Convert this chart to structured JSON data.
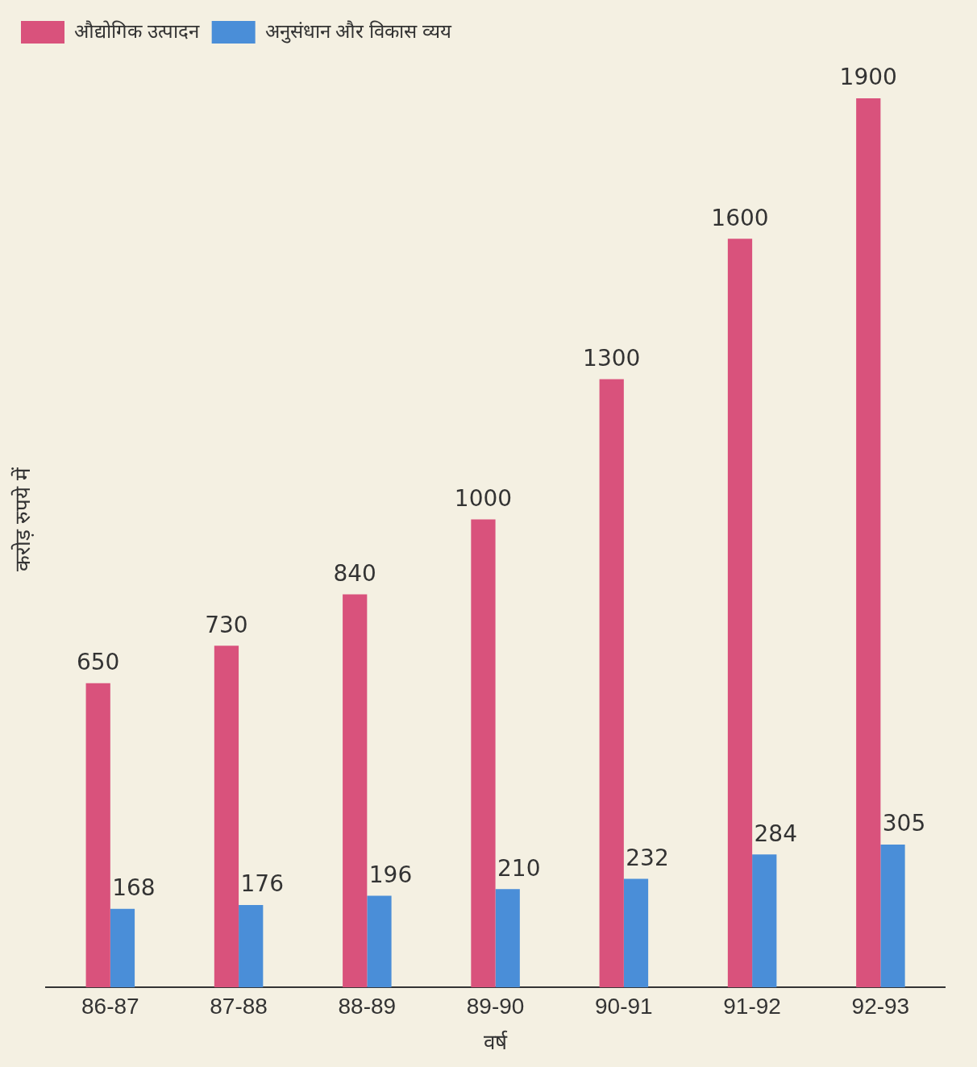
{
  "chart_data": {
    "type": "bar",
    "xlabel": "वर्ष",
    "ylabel": "करोड़ रुपये में",
    "categories": [
      "86-87",
      "87-88",
      "88-89",
      "89-90",
      "90-91",
      "91-92",
      "92-93"
    ],
    "series": [
      {
        "name": "औद्योगिक उत्पादन",
        "color": "#d9527c",
        "values": [
          650,
          730,
          840,
          1000,
          1300,
          1600,
          1900
        ]
      },
      {
        "name": "अनुसंधान और विकास व्यय",
        "color": "#4a8ed8",
        "values": [
          168,
          176,
          196,
          210,
          232,
          284,
          305
        ]
      }
    ],
    "data_labels": true,
    "grid": false,
    "legend": "top left"
  }
}
